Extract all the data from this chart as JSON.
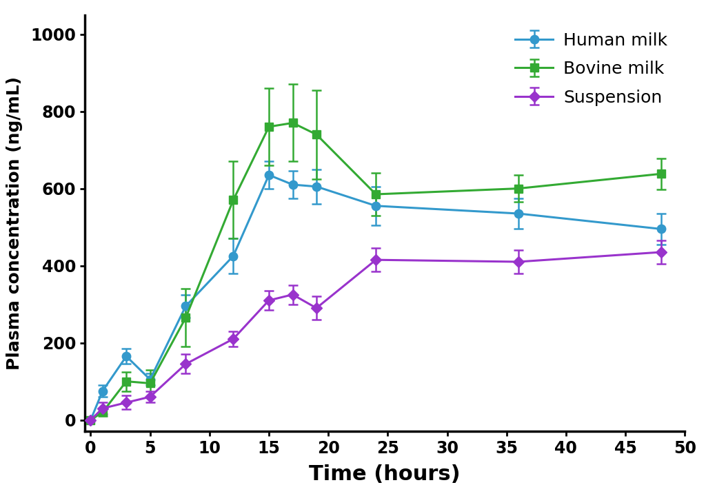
{
  "human_milk": {
    "x": [
      0,
      1,
      3,
      5,
      8,
      12,
      15,
      17,
      19,
      24,
      36,
      48
    ],
    "y": [
      0,
      75,
      165,
      105,
      295,
      425,
      635,
      610,
      605,
      555,
      535,
      495
    ],
    "yerr_low": [
      0,
      15,
      20,
      15,
      30,
      45,
      35,
      35,
      45,
      50,
      40,
      40
    ],
    "yerr_high": [
      0,
      15,
      20,
      15,
      30,
      45,
      35,
      35,
      45,
      50,
      40,
      40
    ],
    "color": "#3399CC",
    "label": "Human milk",
    "marker": "o",
    "markersize": 9,
    "linewidth": 2.2
  },
  "bovine_milk": {
    "x": [
      0,
      1,
      3,
      5,
      8,
      12,
      15,
      17,
      19,
      24,
      36,
      48
    ],
    "y": [
      0,
      20,
      100,
      95,
      265,
      570,
      760,
      770,
      740,
      585,
      600,
      638
    ],
    "yerr_low": [
      0,
      10,
      25,
      35,
      75,
      100,
      100,
      100,
      115,
      55,
      35,
      40
    ],
    "yerr_high": [
      0,
      10,
      25,
      35,
      75,
      100,
      100,
      100,
      115,
      55,
      35,
      40
    ],
    "color": "#33AA33",
    "label": "Bovine milk",
    "marker": "s",
    "markersize": 9,
    "linewidth": 2.2
  },
  "suspension": {
    "x": [
      0,
      1,
      3,
      5,
      8,
      12,
      15,
      17,
      19,
      24,
      36,
      48
    ],
    "y": [
      0,
      30,
      45,
      60,
      145,
      210,
      310,
      325,
      290,
      415,
      410,
      435
    ],
    "yerr_low": [
      0,
      15,
      18,
      15,
      25,
      20,
      25,
      25,
      30,
      30,
      30,
      30
    ],
    "yerr_high": [
      0,
      15,
      18,
      15,
      25,
      20,
      25,
      25,
      30,
      30,
      30,
      30
    ],
    "color": "#9933CC",
    "label": "Suspension",
    "marker": "D",
    "markersize": 8,
    "linewidth": 2.2
  },
  "xlabel": "Time (hours)",
  "ylabel": "Plasma concentration (ng/mL)",
  "xlim": [
    -0.5,
    50
  ],
  "ylim": [
    -30,
    1050
  ],
  "xticks": [
    0,
    5,
    10,
    15,
    20,
    25,
    30,
    35,
    40,
    45,
    50
  ],
  "yticks": [
    0,
    200,
    400,
    600,
    800,
    1000
  ],
  "background_color": "#ffffff",
  "xlabel_fontsize": 22,
  "ylabel_fontsize": 18,
  "tick_fontsize": 17,
  "legend_fontsize": 18
}
